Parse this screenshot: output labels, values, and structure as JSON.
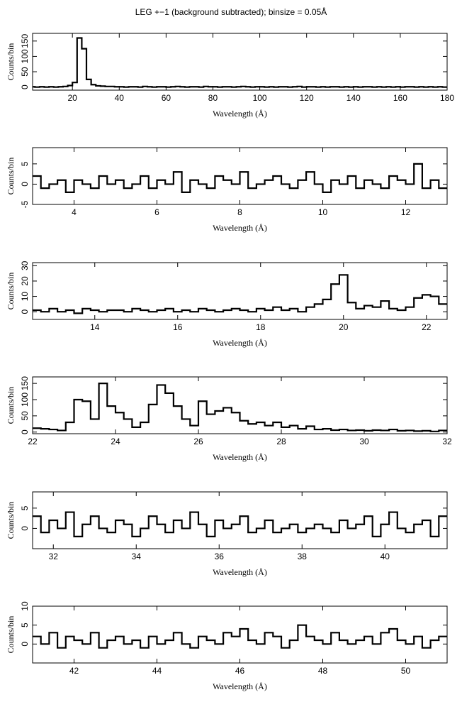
{
  "chart_data": [
    {
      "type": "line",
      "drawstyle": "steps-mid",
      "title": "LEG +−1 (background subtracted); binsize = 0.05Å",
      "xlabel": "Wavelength (Å)",
      "ylabel": "Counts/bin",
      "color": "#000000",
      "xlim": [
        3,
        180
      ],
      "xticks": [
        20,
        40,
        60,
        80,
        100,
        120,
        140,
        160,
        180
      ],
      "ylim": [
        -10,
        175
      ],
      "yticks": [
        0,
        50,
        100,
        150
      ],
      "x": [
        3,
        5,
        7,
        9,
        11,
        13,
        15,
        17,
        19,
        21,
        23,
        25,
        27,
        29,
        31,
        33,
        35,
        37,
        39,
        41,
        43,
        45,
        47,
        49,
        51,
        53,
        55,
        57,
        59,
        61,
        63,
        65,
        67,
        69,
        71,
        73,
        75,
        77,
        79,
        81,
        83,
        85,
        87,
        89,
        91,
        93,
        95,
        97,
        99,
        101,
        103,
        105,
        107,
        109,
        111,
        113,
        115,
        117,
        119,
        121,
        123,
        125,
        127,
        129,
        131,
        133,
        135,
        137,
        139,
        141,
        143,
        145,
        147,
        149,
        151,
        153,
        155,
        157,
        159,
        161,
        163,
        165,
        167,
        169,
        171,
        173,
        175,
        177,
        179
      ],
      "values": [
        1,
        0,
        1,
        0,
        1,
        0,
        1,
        2,
        5,
        15,
        160,
        125,
        25,
        8,
        4,
        3,
        2,
        2,
        1,
        1,
        0,
        1,
        1,
        0,
        2,
        1,
        0,
        1,
        1,
        0,
        1,
        2,
        1,
        0,
        1,
        1,
        0,
        2,
        1,
        1,
        0,
        1,
        1,
        0,
        1,
        2,
        1,
        0,
        1,
        1,
        0,
        1,
        0,
        1,
        1,
        0,
        1,
        2,
        0,
        1,
        1,
        0,
        1,
        0,
        1,
        1,
        0,
        1,
        0,
        1,
        0,
        1,
        1,
        0,
        1,
        0,
        1,
        0,
        1,
        0,
        1,
        1,
        0,
        1,
        0,
        1,
        0,
        1,
        0
      ]
    },
    {
      "type": "line",
      "drawstyle": "steps-mid",
      "xlabel": "Wavelength (Å)",
      "ylabel": "Counts/bin",
      "color": "#000000",
      "xlim": [
        3,
        13
      ],
      "xticks": [
        4,
        6,
        8,
        10,
        12
      ],
      "ylim": [
        -5,
        9
      ],
      "yticks": [
        -5,
        0,
        5
      ],
      "x": [
        3.1,
        3.3,
        3.5,
        3.7,
        3.9,
        4.1,
        4.3,
        4.5,
        4.7,
        4.9,
        5.1,
        5.3,
        5.5,
        5.7,
        5.9,
        6.1,
        6.3,
        6.5,
        6.7,
        6.9,
        7.1,
        7.3,
        7.5,
        7.7,
        7.9,
        8.1,
        8.3,
        8.5,
        8.7,
        8.9,
        9.1,
        9.3,
        9.5,
        9.7,
        9.9,
        10.1,
        10.3,
        10.5,
        10.7,
        10.9,
        11.1,
        11.3,
        11.5,
        11.7,
        11.9,
        12.1,
        12.3,
        12.5,
        12.7,
        12.9
      ],
      "values": [
        2,
        -1,
        0,
        1,
        -2,
        1,
        0,
        -1,
        2,
        0,
        1,
        -1,
        0,
        2,
        -1,
        1,
        0,
        3,
        -2,
        1,
        0,
        -1,
        2,
        1,
        0,
        3,
        -1,
        0,
        1,
        2,
        0,
        -1,
        1,
        3,
        0,
        -2,
        1,
        0,
        2,
        -1,
        1,
        0,
        -1,
        2,
        1,
        0,
        5,
        -1,
        1,
        -1
      ]
    },
    {
      "type": "line",
      "drawstyle": "steps-mid",
      "xlabel": "Wavelength (Å)",
      "ylabel": "Counts/bin",
      "color": "#000000",
      "xlim": [
        12.5,
        22.5
      ],
      "xticks": [
        14,
        16,
        18,
        20,
        22
      ],
      "ylim": [
        -5,
        32
      ],
      "yticks": [
        0,
        10,
        20,
        30
      ],
      "x": [
        12.6,
        12.8,
        13,
        13.2,
        13.4,
        13.6,
        13.8,
        14,
        14.2,
        14.4,
        14.6,
        14.8,
        15,
        15.2,
        15.4,
        15.6,
        15.8,
        16,
        16.2,
        16.4,
        16.6,
        16.8,
        17,
        17.2,
        17.4,
        17.6,
        17.8,
        18,
        18.2,
        18.4,
        18.6,
        18.8,
        19,
        19.2,
        19.4,
        19.6,
        19.8,
        20,
        20.2,
        20.4,
        20.6,
        20.8,
        21,
        21.2,
        21.4,
        21.6,
        21.8,
        22,
        22.2,
        22.4
      ],
      "values": [
        1,
        0,
        2,
        0,
        1,
        -1,
        2,
        1,
        0,
        1,
        1,
        0,
        2,
        1,
        0,
        1,
        2,
        0,
        1,
        0,
        2,
        1,
        0,
        1,
        2,
        1,
        0,
        2,
        1,
        3,
        1,
        2,
        0,
        3,
        5,
        8,
        18,
        24,
        6,
        2,
        4,
        3,
        7,
        2,
        1,
        3,
        9,
        11,
        10,
        5
      ]
    },
    {
      "type": "line",
      "drawstyle": "steps-mid",
      "xlabel": "Wavelength (Å)",
      "ylabel": "Counts/bin",
      "color": "#000000",
      "xlim": [
        22,
        32
      ],
      "xticks": [
        22,
        24,
        26,
        28,
        30,
        32
      ],
      "ylim": [
        -5,
        170
      ],
      "yticks": [
        0,
        50,
        100,
        150
      ],
      "x": [
        22.1,
        22.3,
        22.5,
        22.7,
        22.9,
        23.1,
        23.3,
        23.5,
        23.7,
        23.9,
        24.1,
        24.3,
        24.5,
        24.7,
        24.9,
        25.1,
        25.3,
        25.5,
        25.7,
        25.9,
        26.1,
        26.3,
        26.5,
        26.7,
        26.9,
        27.1,
        27.3,
        27.5,
        27.7,
        27.9,
        28.1,
        28.3,
        28.5,
        28.7,
        28.9,
        29.1,
        29.3,
        29.5,
        29.7,
        29.9,
        30.1,
        30.3,
        30.5,
        30.7,
        30.9,
        31.1,
        31.3,
        31.5,
        31.7,
        31.9
      ],
      "values": [
        12,
        10,
        8,
        5,
        30,
        100,
        95,
        40,
        150,
        80,
        60,
        40,
        15,
        30,
        85,
        145,
        120,
        80,
        40,
        20,
        95,
        55,
        65,
        75,
        60,
        35,
        25,
        30,
        20,
        30,
        15,
        20,
        10,
        18,
        8,
        10,
        6,
        8,
        5,
        6,
        4,
        6,
        5,
        8,
        4,
        5,
        3,
        4,
        2,
        5
      ]
    },
    {
      "type": "line",
      "drawstyle": "steps-mid",
      "xlabel": "Wavelength (Å)",
      "ylabel": "Counts/bin",
      "color": "#000000",
      "xlim": [
        31.5,
        41.5
      ],
      "xticks": [
        32,
        34,
        36,
        38,
        40
      ],
      "ylim": [
        -5,
        9
      ],
      "yticks": [
        0,
        5
      ],
      "x": [
        31.6,
        31.8,
        32,
        32.2,
        32.4,
        32.6,
        32.8,
        33,
        33.2,
        33.4,
        33.6,
        33.8,
        34,
        34.2,
        34.4,
        34.6,
        34.8,
        35,
        35.2,
        35.4,
        35.6,
        35.8,
        36,
        36.2,
        36.4,
        36.6,
        36.8,
        37,
        37.2,
        37.4,
        37.6,
        37.8,
        38,
        38.2,
        38.4,
        38.6,
        38.8,
        39,
        39.2,
        39.4,
        39.6,
        39.8,
        40,
        40.2,
        40.4,
        40.6,
        40.8,
        41,
        41.2,
        41.4
      ],
      "values": [
        3,
        -1,
        2,
        0,
        4,
        -2,
        1,
        3,
        0,
        -1,
        2,
        1,
        -2,
        0,
        3,
        1,
        -1,
        2,
        0,
        4,
        1,
        -2,
        2,
        0,
        1,
        3,
        -1,
        0,
        2,
        -1,
        0,
        1,
        -1,
        0,
        1,
        0,
        -1,
        2,
        0,
        1,
        3,
        -2,
        1,
        4,
        0,
        -1,
        1,
        2,
        -2,
        3
      ]
    },
    {
      "type": "line",
      "drawstyle": "steps-mid",
      "xlabel": "Wavelength (Å)",
      "ylabel": "Counts/bin",
      "color": "#000000",
      "xlim": [
        41,
        51
      ],
      "xticks": [
        42,
        44,
        46,
        48,
        50
      ],
      "ylim": [
        -5,
        10
      ],
      "yticks": [
        0,
        5,
        10
      ],
      "x": [
        41.1,
        41.3,
        41.5,
        41.7,
        41.9,
        42.1,
        42.3,
        42.5,
        42.7,
        42.9,
        43.1,
        43.3,
        43.5,
        43.7,
        43.9,
        44.1,
        44.3,
        44.5,
        44.7,
        44.9,
        45.1,
        45.3,
        45.5,
        45.7,
        45.9,
        46.1,
        46.3,
        46.5,
        46.7,
        46.9,
        47.1,
        47.3,
        47.5,
        47.7,
        47.9,
        48.1,
        48.3,
        48.5,
        48.7,
        48.9,
        49.1,
        49.3,
        49.5,
        49.7,
        49.9,
        50.1,
        50.3,
        50.5,
        50.7,
        50.9
      ],
      "values": [
        2,
        0,
        3,
        -1,
        2,
        1,
        0,
        3,
        -1,
        1,
        2,
        0,
        1,
        -1,
        2,
        0,
        1,
        3,
        0,
        -1,
        2,
        1,
        0,
        3,
        2,
        4,
        1,
        0,
        3,
        2,
        -1,
        1,
        5,
        2,
        1,
        0,
        3,
        1,
        0,
        1,
        2,
        0,
        3,
        4,
        1,
        0,
        2,
        -1,
        1,
        2
      ]
    }
  ]
}
